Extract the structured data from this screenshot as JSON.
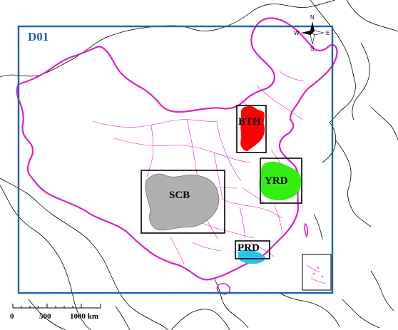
{
  "domain": {
    "label": "D01",
    "color": "#1f5fb3"
  },
  "boundary_color": "#e020c0",
  "coast_color": "#000000",
  "regions": [
    {
      "id": "bth",
      "label": "BTH",
      "color": "#ff0000"
    },
    {
      "id": "yrd",
      "label": "YRD",
      "color": "#33ee11"
    },
    {
      "id": "scb",
      "label": "SCB",
      "color": "#b0b0b0"
    },
    {
      "id": "prd",
      "label": "PRD",
      "color": "#21c7ef"
    }
  ],
  "compass": {
    "n": "N",
    "s": "S",
    "e": "E",
    "w": "W"
  },
  "scale_bar": {
    "labels": [
      "0",
      "500",
      "1000 km"
    ]
  }
}
